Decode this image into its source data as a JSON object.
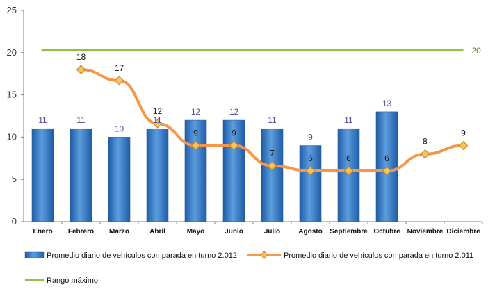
{
  "colors": {
    "bar_fill_light": "#5b9ddd",
    "bar_fill_dark": "#1f5ca8",
    "line_2011": "#f79646",
    "marker_fill": "#f5c25e",
    "marker_stroke": "#c87f1a",
    "limit_line": "#92c040",
    "axis": "#808080"
  },
  "chart_data": {
    "type": "bar",
    "categories": [
      "Enero",
      "Febrero",
      "Marzo",
      "Abril",
      "Mayo",
      "Junio",
      "Julio",
      "Agosto",
      "Septiembre",
      "Octubre",
      "Noviembre",
      "Diciembre"
    ],
    "series": [
      {
        "name": "Promedio diario de vehículos con parada en turno 2.012",
        "kind": "bar",
        "values": [
          11,
          11,
          10,
          11,
          12,
          12,
          11,
          9,
          11,
          13,
          null,
          null
        ]
      },
      {
        "name": "Promedio diario de vehículos con parada en turno 2.011",
        "kind": "line",
        "values": [
          null,
          18,
          16.7,
          11.6,
          9,
          9,
          6.6,
          6,
          6,
          6,
          8,
          9
        ],
        "labels": [
          null,
          "18",
          "17",
          "12",
          "9",
          "9",
          "7",
          "6",
          "6",
          "6",
          "8",
          "9"
        ]
      },
      {
        "name": "Rango máximo",
        "kind": "line",
        "values": [
          20.3,
          20.3,
          20.3,
          20.3,
          20.3,
          20.3,
          20.3,
          20.3,
          20.3,
          20.3,
          20.3,
          20.3
        ],
        "end_label": "20"
      }
    ],
    "yticks": [
      "0",
      "5",
      "10",
      "15",
      "20",
      "25"
    ],
    "ylim": [
      0,
      25
    ],
    "grid": false,
    "legend_position": "bottom"
  }
}
